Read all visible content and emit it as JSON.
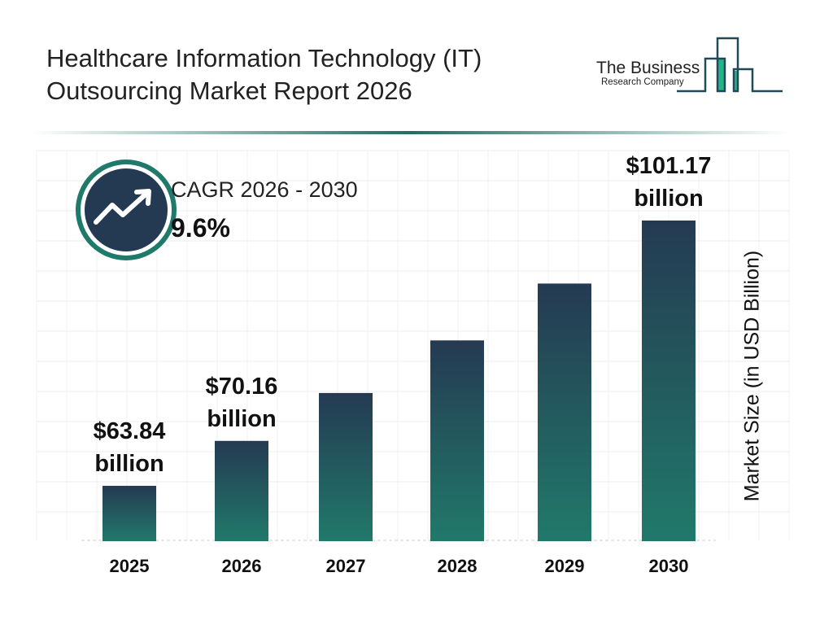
{
  "header": {
    "title_line1": "Healthcare Information Technology (IT)",
    "title_line2": "Outsourcing Market Report 2026"
  },
  "logo": {
    "line1": "The Business",
    "line2": "Research Company"
  },
  "cagr": {
    "label": "CAGR 2026 - 2030",
    "value": "9.6%",
    "icon": "trend-up-arrow-icon"
  },
  "colors": {
    "bar_top": "#253a52",
    "bar_bottom": "#21796a",
    "ring": "#1f7a6a",
    "circle": "#243a52"
  },
  "chart_data": {
    "type": "bar",
    "categories": [
      "2025",
      "2026",
      "2027",
      "2028",
      "2029",
      "2030"
    ],
    "values": [
      63.84,
      70.16,
      76.9,
      84.3,
      92.3,
      101.17
    ],
    "data_labels": [
      {
        "index": 0,
        "amount": "$63.84",
        "unit": "billion"
      },
      {
        "index": 1,
        "amount": "$70.16",
        "unit": "billion"
      },
      {
        "index": 5,
        "amount": "$101.17",
        "unit": "billion"
      }
    ],
    "ylabel": "Market Size (in USD Billion)",
    "grid": true
  }
}
